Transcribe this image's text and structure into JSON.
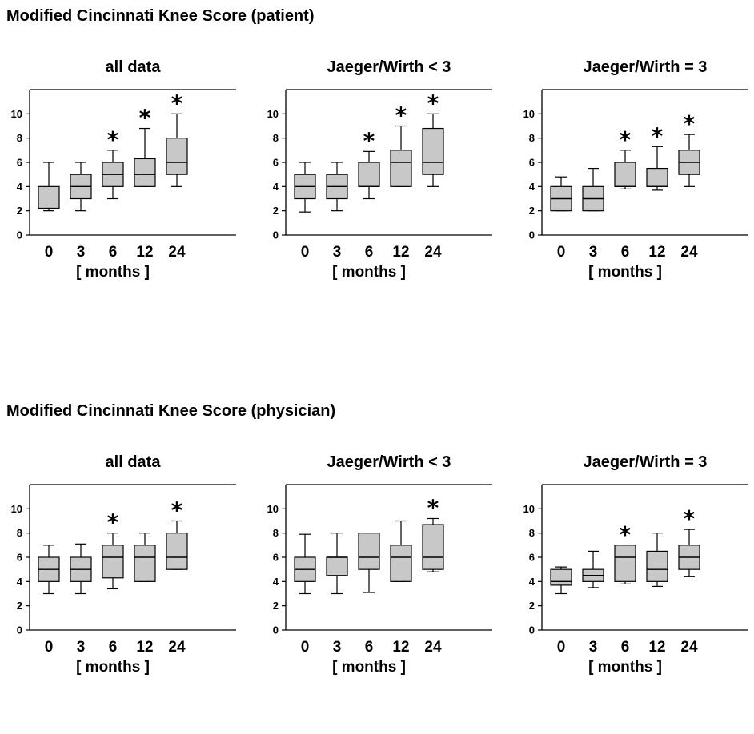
{
  "figure": {
    "title_top": "Modified Cincinnati Knee Score (patient)",
    "title_bottom": "Modified Cincinnati Knee Score (physician)"
  },
  "colors": {
    "box_fill": "#c8c8c8",
    "stroke": "#000000"
  },
  "chart_data": [
    {
      "type": "box",
      "section": "patient",
      "title": "all data",
      "xlabel": "[ months ]",
      "categories": [
        "0",
        "3",
        "6",
        "12",
        "24"
      ],
      "ylim": [
        0,
        12
      ],
      "yticks": [
        0,
        2,
        4,
        6,
        8,
        10
      ],
      "boxes": [
        {
          "whisker_low": 2,
          "q1": 2.2,
          "median": 2.2,
          "q3": 4,
          "whisker_high": 6,
          "significant": false
        },
        {
          "whisker_low": 2,
          "q1": 3,
          "median": 4,
          "q3": 5,
          "whisker_high": 6,
          "significant": false
        },
        {
          "whisker_low": 3,
          "q1": 4,
          "median": 5,
          "q3": 6,
          "whisker_high": 7,
          "significant": true
        },
        {
          "whisker_low": 4,
          "q1": 4,
          "median": 5,
          "q3": 6.3,
          "whisker_high": 8.8,
          "significant": true
        },
        {
          "whisker_low": 4,
          "q1": 5,
          "median": 6,
          "q3": 8,
          "whisker_high": 10,
          "significant": true
        }
      ],
      "marker": "*"
    },
    {
      "type": "box",
      "section": "patient",
      "title": "Jaeger/Wirth < 3",
      "xlabel": "[ months ]",
      "categories": [
        "0",
        "3",
        "6",
        "12",
        "24"
      ],
      "ylim": [
        0,
        12
      ],
      "yticks": [
        0,
        2,
        4,
        6,
        8,
        10
      ],
      "boxes": [
        {
          "whisker_low": 1.9,
          "q1": 3,
          "median": 4,
          "q3": 5,
          "whisker_high": 6,
          "significant": false
        },
        {
          "whisker_low": 2,
          "q1": 3,
          "median": 4,
          "q3": 5,
          "whisker_high": 6,
          "significant": false
        },
        {
          "whisker_low": 3,
          "q1": 4,
          "median": 4,
          "q3": 6,
          "whisker_high": 6.9,
          "significant": true
        },
        {
          "whisker_low": 4,
          "q1": 4,
          "median": 6,
          "q3": 7,
          "whisker_high": 9,
          "significant": true
        },
        {
          "whisker_low": 4,
          "q1": 5,
          "median": 6,
          "q3": 8.8,
          "whisker_high": 10,
          "significant": true
        }
      ],
      "marker": "*"
    },
    {
      "type": "box",
      "section": "patient",
      "title": "Jaeger/Wirth = 3",
      "xlabel": "[ months ]",
      "categories": [
        "0",
        "3",
        "6",
        "12",
        "24"
      ],
      "ylim": [
        0,
        12
      ],
      "yticks": [
        0,
        2,
        4,
        6,
        8,
        10
      ],
      "boxes": [
        {
          "whisker_low": 2,
          "q1": 2,
          "median": 3,
          "q3": 4,
          "whisker_high": 4.8,
          "significant": false
        },
        {
          "whisker_low": 2,
          "q1": 2,
          "median": 3,
          "q3": 4,
          "whisker_high": 5.5,
          "significant": false
        },
        {
          "whisker_low": 3.8,
          "q1": 4,
          "median": 4,
          "q3": 6,
          "whisker_high": 7,
          "significant": true
        },
        {
          "whisker_low": 3.7,
          "q1": 4,
          "median": 4,
          "q3": 5.5,
          "whisker_high": 7.3,
          "significant": true
        },
        {
          "whisker_low": 4,
          "q1": 5,
          "median": 6,
          "q3": 7,
          "whisker_high": 8.3,
          "significant": true
        }
      ],
      "marker": "*"
    },
    {
      "type": "box",
      "section": "physician",
      "title": "all data",
      "xlabel": "[ months ]",
      "categories": [
        "0",
        "3",
        "6",
        "12",
        "24"
      ],
      "ylim": [
        0,
        12
      ],
      "yticks": [
        0,
        2,
        4,
        6,
        8,
        10
      ],
      "boxes": [
        {
          "whisker_low": 3,
          "q1": 4,
          "median": 5,
          "q3": 6,
          "whisker_high": 7,
          "significant": false
        },
        {
          "whisker_low": 3,
          "q1": 4,
          "median": 5,
          "q3": 6,
          "whisker_high": 7.1,
          "significant": false
        },
        {
          "whisker_low": 3.4,
          "q1": 4.3,
          "median": 6,
          "q3": 7,
          "whisker_high": 8,
          "significant": true
        },
        {
          "whisker_low": 4,
          "q1": 4,
          "median": 6,
          "q3": 7,
          "whisker_high": 8,
          "significant": false
        },
        {
          "whisker_low": 5,
          "q1": 5,
          "median": 6,
          "q3": 8,
          "whisker_high": 9,
          "significant": true
        }
      ],
      "marker": "*"
    },
    {
      "type": "box",
      "section": "physician",
      "title": "Jaeger/Wirth < 3",
      "xlabel": "[ months ]",
      "categories": [
        "0",
        "3",
        "6",
        "12",
        "24"
      ],
      "ylim": [
        0,
        12
      ],
      "yticks": [
        0,
        2,
        4,
        6,
        8,
        10
      ],
      "boxes": [
        {
          "whisker_low": 3,
          "q1": 4,
          "median": 5,
          "q3": 6,
          "whisker_high": 7.9,
          "significant": false
        },
        {
          "whisker_low": 3,
          "q1": 4.5,
          "median": 6,
          "q3": 6,
          "whisker_high": 8,
          "significant": false
        },
        {
          "whisker_low": 3.1,
          "q1": 5,
          "median": 6,
          "q3": 8,
          "whisker_high": 8,
          "significant": false
        },
        {
          "whisker_low": 4,
          "q1": 4,
          "median": 6,
          "q3": 7,
          "whisker_high": 9,
          "significant": false
        },
        {
          "whisker_low": 4.8,
          "q1": 5,
          "median": 6,
          "q3": 8.7,
          "whisker_high": 9.2,
          "significant": true
        }
      ],
      "marker": "*"
    },
    {
      "type": "box",
      "section": "physician",
      "title": "Jaeger/Wirth = 3",
      "xlabel": "[ months ]",
      "categories": [
        "0",
        "3",
        "6",
        "12",
        "24"
      ],
      "ylim": [
        0,
        12
      ],
      "yticks": [
        0,
        2,
        4,
        6,
        8,
        10
      ],
      "boxes": [
        {
          "whisker_low": 3,
          "q1": 3.7,
          "median": 4,
          "q3": 5,
          "whisker_high": 5.2,
          "significant": false
        },
        {
          "whisker_low": 3.5,
          "q1": 4,
          "median": 4.5,
          "q3": 5,
          "whisker_high": 6.5,
          "significant": false
        },
        {
          "whisker_low": 3.8,
          "q1": 4,
          "median": 6,
          "q3": 7,
          "whisker_high": 7,
          "significant": true
        },
        {
          "whisker_low": 3.6,
          "q1": 4,
          "median": 5,
          "q3": 6.5,
          "whisker_high": 8,
          "significant": false
        },
        {
          "whisker_low": 4.4,
          "q1": 5,
          "median": 6,
          "q3": 7,
          "whisker_high": 8.3,
          "significant": true
        }
      ],
      "marker": "*"
    }
  ]
}
